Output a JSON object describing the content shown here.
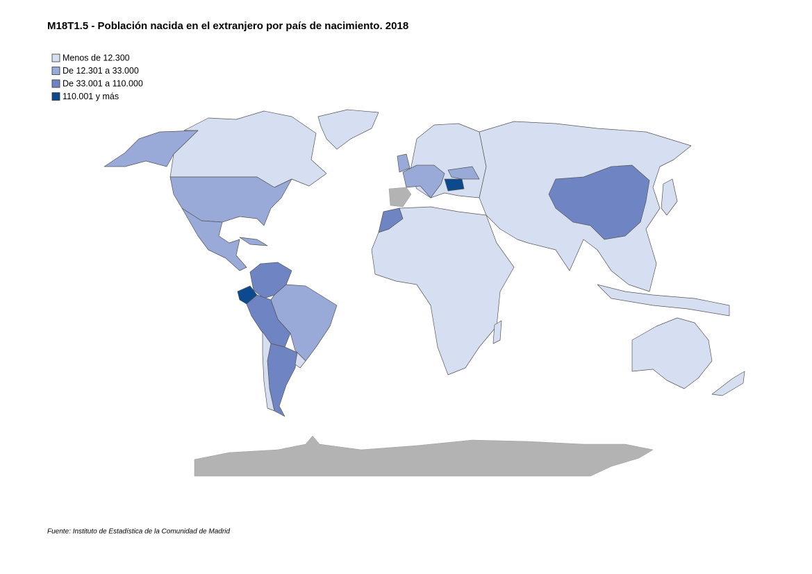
{
  "title": "M18T1.5 - Población nacida en el extranjero por país de nacimiento. 2018",
  "legend": [
    {
      "label": "Menos de 12.300",
      "color": "#d6dff1"
    },
    {
      "label": "De 12.301 a 33.000",
      "color": "#99aad9"
    },
    {
      "label": "De 33.001 a 110.000",
      "color": "#6f84c3"
    },
    {
      "label": "110.001 y más",
      "color": "#0b4a8c"
    }
  ],
  "source": "Fuente: Instituto de Estadística de la Comunidad de Madrid"
}
